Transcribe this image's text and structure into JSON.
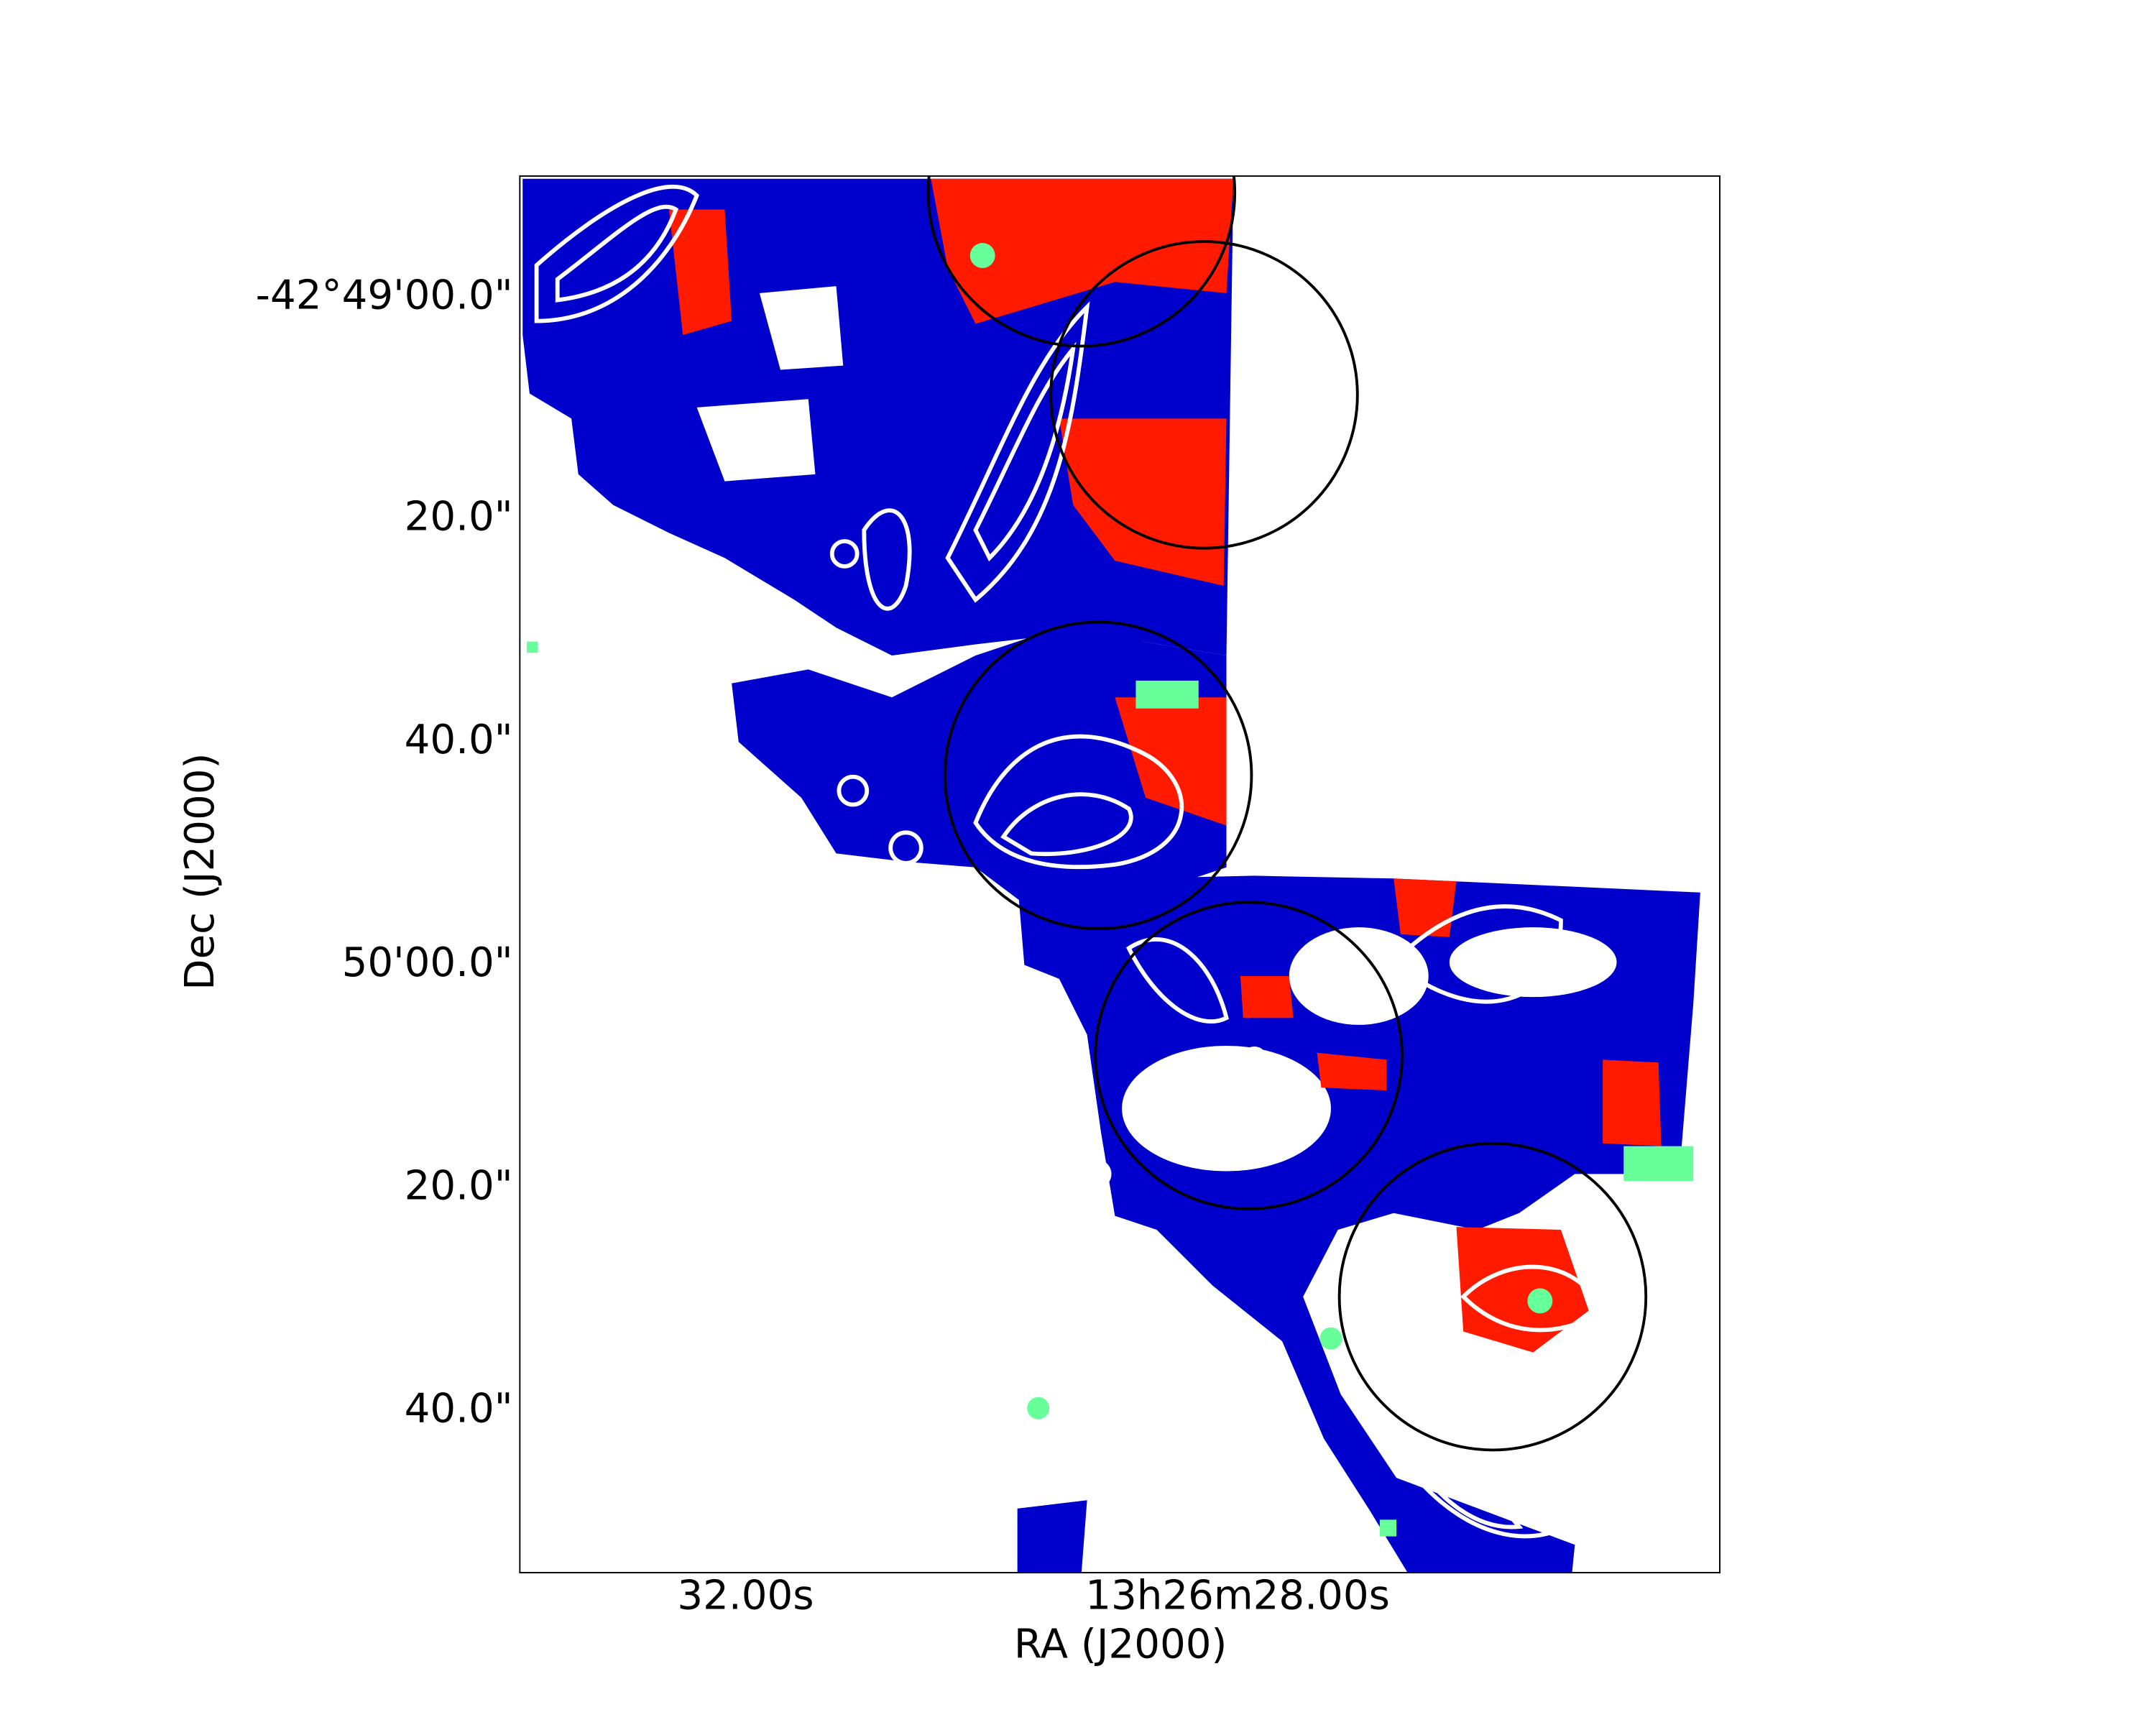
{
  "axes": {
    "x_label": "RA (J2000)",
    "y_label": "Dec (J2000)",
    "x_ticks": [
      "32.00s",
      "13h26m28.00s"
    ],
    "y_ticks": [
      "-42°49'00.0\"",
      "20.0\"",
      "40.0\"",
      "50'00.0\"",
      "20.0\"",
      "40.0\""
    ]
  }
}
